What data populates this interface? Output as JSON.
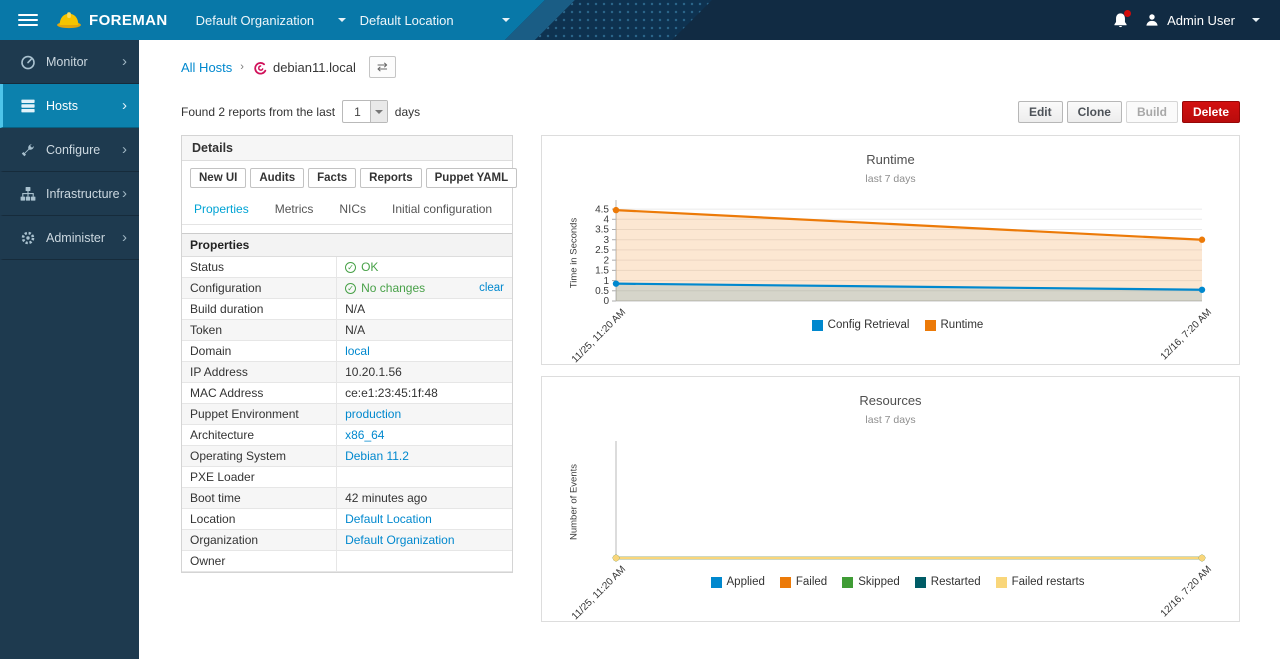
{
  "navbar": {
    "brand": "FOREMAN",
    "organization": "Default Organization",
    "location": "Default Location",
    "user": "Admin User",
    "icons": {
      "notifications": "bell-icon",
      "account": "user-icon",
      "menu": "hamburger-icon",
      "logo": "hardhat-logo-icon"
    },
    "colors": {
      "bar": "#0878a8",
      "bar_dark": "#112b43"
    }
  },
  "sidebar": {
    "items": [
      {
        "label": "Monitor",
        "icon": "gauge-icon",
        "active": false
      },
      {
        "label": "Hosts",
        "icon": "servers-icon",
        "active": true
      },
      {
        "label": "Configure",
        "icon": "wrench-icon",
        "active": false
      },
      {
        "label": "Infrastructure",
        "icon": "sitemap-icon",
        "active": false
      },
      {
        "label": "Administer",
        "icon": "gear-icon",
        "active": false
      }
    ]
  },
  "breadcrumb": {
    "root": "All Hosts",
    "current": "debian11.local",
    "host_icon": "debian-swirl-icon",
    "switcher_icon": "host-switcher-icon"
  },
  "report_bar": {
    "prefix": "Found 2 reports from the last",
    "days_value": "1",
    "suffix": "days"
  },
  "actions": {
    "edit": "Edit",
    "clone": "Clone",
    "build": "Build",
    "delete": "Delete"
  },
  "details": {
    "title": "Details",
    "buttons": [
      "New UI",
      "Audits",
      "Facts",
      "Reports",
      "Puppet YAML"
    ],
    "tabs": [
      {
        "label": "Properties",
        "active": true
      },
      {
        "label": "Metrics",
        "active": false
      },
      {
        "label": "NICs",
        "active": false
      },
      {
        "label": "Initial configuration",
        "active": false
      }
    ],
    "table_title": "Properties",
    "rows": [
      {
        "label": "Status",
        "value": "OK",
        "type": "status-ok"
      },
      {
        "label": "Configuration",
        "value": "No changes",
        "type": "status-ok",
        "extra": "clear"
      },
      {
        "label": "Build duration",
        "value": "N/A",
        "type": "text"
      },
      {
        "label": "Token",
        "value": "N/A",
        "type": "text"
      },
      {
        "label": "Domain",
        "value": "local",
        "type": "link"
      },
      {
        "label": "IP Address",
        "value": "10.20.1.56",
        "type": "text"
      },
      {
        "label": "MAC Address",
        "value": "ce:e1:23:45:1f:48",
        "type": "text"
      },
      {
        "label": "Puppet Environment",
        "value": "production",
        "type": "link"
      },
      {
        "label": "Architecture",
        "value": "x86_64",
        "type": "link"
      },
      {
        "label": "Operating System",
        "value": "Debian 11.2",
        "type": "link"
      },
      {
        "label": "PXE Loader",
        "value": "",
        "type": "text"
      },
      {
        "label": "Boot time",
        "value": "42 minutes ago",
        "type": "text"
      },
      {
        "label": "Location",
        "value": "Default Location",
        "type": "link"
      },
      {
        "label": "Organization",
        "value": "Default Organization",
        "type": "link"
      },
      {
        "label": "Owner",
        "value": "",
        "type": "text"
      }
    ],
    "status_colors": {
      "ok_green": "#48a148",
      "link_blue": "#0088ce"
    }
  },
  "chart_data": [
    {
      "type": "area",
      "title": "Runtime",
      "subtitle": "last 7 days",
      "ylabel": "Time in Seconds",
      "x": [
        "11/25, 11:20 AM",
        "12/16, 7:20 AM"
      ],
      "yticks": [
        0,
        0.5,
        1,
        1.5,
        2,
        2.5,
        3,
        3.5,
        4,
        4.5
      ],
      "ylim": [
        0,
        4.7
      ],
      "grid": true,
      "legend_position": "bottom",
      "series": [
        {
          "name": "Config Retrieval",
          "color": "#0088ce",
          "values": [
            0.85,
            0.55
          ]
        },
        {
          "name": "Runtime",
          "color": "#ec7a08",
          "values": [
            4.45,
            3.0
          ]
        }
      ]
    },
    {
      "type": "area",
      "title": "Resources",
      "subtitle": "last 7 days",
      "ylabel": "Number of Events",
      "x": [
        "11/25, 11:20 AM",
        "12/16, 7:20 AM"
      ],
      "yticks": [],
      "ylim": [
        0,
        1
      ],
      "grid": false,
      "legend_position": "bottom",
      "series": [
        {
          "name": "Applied",
          "color": "#0088ce",
          "values": [
            0,
            0
          ]
        },
        {
          "name": "Failed",
          "color": "#ec7a08",
          "values": [
            0,
            0
          ]
        },
        {
          "name": "Skipped",
          "color": "#3f9c35",
          "values": [
            0,
            0
          ]
        },
        {
          "name": "Restarted",
          "color": "#005c66",
          "values": [
            0,
            0
          ]
        },
        {
          "name": "Failed restarts",
          "color": "#f9d67a",
          "values": [
            0,
            0
          ]
        }
      ]
    }
  ]
}
